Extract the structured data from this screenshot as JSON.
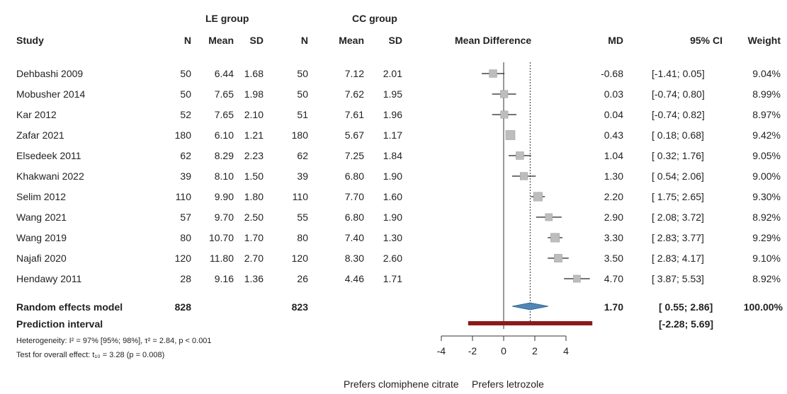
{
  "chart_data": {
    "type": "forest",
    "group_headers": [
      "LE group",
      "CC group"
    ],
    "columns": [
      "Study",
      "N",
      "Mean",
      "SD",
      "N",
      "Mean",
      "SD",
      "Mean Difference",
      "MD",
      "95% CI",
      "Weight"
    ],
    "studies": [
      {
        "study": "Dehbashi 2009",
        "le_n": "50",
        "le_mean": "6.44",
        "le_sd": "1.68",
        "cc_n": "50",
        "cc_mean": "7.12",
        "cc_sd": "2.01",
        "md": -0.68,
        "lo": -1.41,
        "hi": 0.05,
        "md_text": "-0.68",
        "ci_text": "[-1.41; 0.05]",
        "weight": "9.04%",
        "w": 9.04
      },
      {
        "study": "Mobusher 2014",
        "le_n": "50",
        "le_mean": "7.65",
        "le_sd": "1.98",
        "cc_n": "50",
        "cc_mean": "7.62",
        "cc_sd": "1.95",
        "md": 0.03,
        "lo": -0.74,
        "hi": 0.8,
        "md_text": "0.03",
        "ci_text": "[-0.74; 0.80]",
        "weight": "8.99%",
        "w": 8.99
      },
      {
        "study": "Kar 2012",
        "le_n": "52",
        "le_mean": "7.65",
        "le_sd": "2.10",
        "cc_n": "51",
        "cc_mean": "7.61",
        "cc_sd": "1.96",
        "md": 0.04,
        "lo": -0.74,
        "hi": 0.82,
        "md_text": "0.04",
        "ci_text": "[-0.74; 0.82]",
        "weight": "8.97%",
        "w": 8.97
      },
      {
        "study": "Zafar 2021",
        "le_n": "180",
        "le_mean": "6.10",
        "le_sd": "1.21",
        "cc_n": "180",
        "cc_mean": "5.67",
        "cc_sd": "1.17",
        "md": 0.43,
        "lo": 0.18,
        "hi": 0.68,
        "md_text": "0.43",
        "ci_text": "[ 0.18; 0.68]",
        "weight": "9.42%",
        "w": 9.42
      },
      {
        "study": "Elsedeek 2011",
        "le_n": "62",
        "le_mean": "8.29",
        "le_sd": "2.23",
        "cc_n": "62",
        "cc_mean": "7.25",
        "cc_sd": "1.84",
        "md": 1.04,
        "lo": 0.32,
        "hi": 1.76,
        "md_text": "1.04",
        "ci_text": "[ 0.32; 1.76]",
        "weight": "9.05%",
        "w": 9.05
      },
      {
        "study": "Khakwani 2022",
        "le_n": "39",
        "le_mean": "8.10",
        "le_sd": "1.50",
        "cc_n": "39",
        "cc_mean": "6.80",
        "cc_sd": "1.90",
        "md": 1.3,
        "lo": 0.54,
        "hi": 2.06,
        "md_text": "1.30",
        "ci_text": "[ 0.54; 2.06]",
        "weight": "9.00%",
        "w": 9.0
      },
      {
        "study": "Selim 2012",
        "le_n": "110",
        "le_mean": "9.90",
        "le_sd": "1.80",
        "cc_n": "110",
        "cc_mean": "7.70",
        "cc_sd": "1.60",
        "md": 2.2,
        "lo": 1.75,
        "hi": 2.65,
        "md_text": "2.20",
        "ci_text": "[ 1.75; 2.65]",
        "weight": "9.30%",
        "w": 9.3
      },
      {
        "study": "Wang 2021",
        "le_n": "57",
        "le_mean": "9.70",
        "le_sd": "2.50",
        "cc_n": "55",
        "cc_mean": "6.80",
        "cc_sd": "1.90",
        "md": 2.9,
        "lo": 2.08,
        "hi": 3.72,
        "md_text": "2.90",
        "ci_text": "[ 2.08; 3.72]",
        "weight": "8.92%",
        "w": 8.92
      },
      {
        "study": "Wang 2019",
        "le_n": "80",
        "le_mean": "10.70",
        "le_sd": "1.70",
        "cc_n": "80",
        "cc_mean": "7.40",
        "cc_sd": "1.30",
        "md": 3.3,
        "lo": 2.83,
        "hi": 3.77,
        "md_text": "3.30",
        "ci_text": "[ 2.83; 3.77]",
        "weight": "9.29%",
        "w": 9.29
      },
      {
        "study": "Najafi 2020",
        "le_n": "120",
        "le_mean": "11.80",
        "le_sd": "2.70",
        "cc_n": "120",
        "cc_mean": "8.30",
        "cc_sd": "2.60",
        "md": 3.5,
        "lo": 2.83,
        "hi": 4.17,
        "md_text": "3.50",
        "ci_text": "[ 2.83; 4.17]",
        "weight": "9.10%",
        "w": 9.1
      },
      {
        "study": "Hendawy 2011",
        "le_n": "28",
        "le_mean": "9.16",
        "le_sd": "1.36",
        "cc_n": "26",
        "cc_mean": "4.46",
        "cc_sd": "1.71",
        "md": 4.7,
        "lo": 3.87,
        "hi": 5.53,
        "md_text": "4.70",
        "ci_text": "[ 3.87; 5.53]",
        "weight": "8.92%",
        "w": 8.92
      }
    ],
    "random_effects": {
      "label": "Random effects model",
      "le_n": "828",
      "cc_n": "823",
      "md": 1.7,
      "lo": 0.55,
      "hi": 2.86,
      "md_text": "1.70",
      "ci_text": "[ 0.55; 2.86]",
      "weight": "100.00%"
    },
    "prediction": {
      "label": "Prediction interval",
      "lo": -2.28,
      "hi": 5.69,
      "ci_text": "[-2.28; 5.69]"
    },
    "heterogeneity": "Heterogeneity: I² = 97% [95%; 98%], τ² = 2.84, p < 0.001",
    "overall_test": "Test for overall effect: t₁₀ = 3.28 (p = 0.008)",
    "xticks": [
      -4,
      -2,
      0,
      2,
      4
    ],
    "xlim": [
      -6,
      6
    ],
    "left_label": "Prefers clomiphene citrate",
    "right_label": "Prefers letrozole",
    "colors": {
      "diamond": "#4f86b5",
      "prediction": "#8b1a1a",
      "box": "#bdbdbd"
    }
  }
}
